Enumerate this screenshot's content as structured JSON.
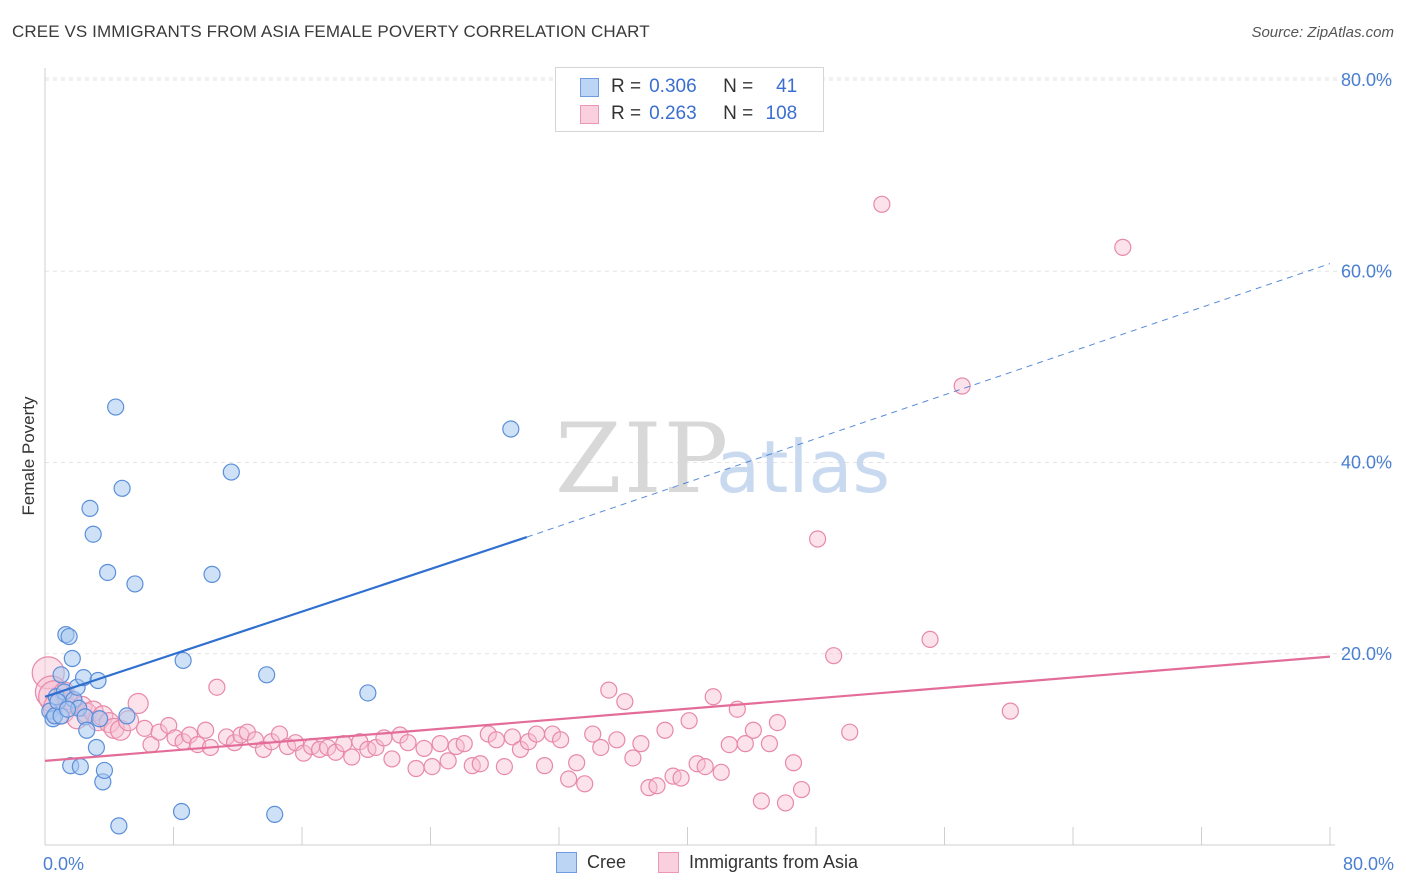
{
  "title": "CREE VS IMMIGRANTS FROM ASIA FEMALE POVERTY CORRELATION CHART",
  "source": "Source: ZipAtlas.com",
  "watermark": {
    "zip": "ZIP",
    "atlas": "atlas"
  },
  "colors": {
    "cree_fill": "#a8c8f0",
    "cree_stroke": "#5b8fd9",
    "cree_line": "#2f6fd0",
    "asia_fill": "#f7bfd2",
    "asia_stroke": "#e889a8",
    "asia_line": "#e36d98",
    "axis_text": "#4a7fd1"
  },
  "legend": {
    "cree": {
      "r_label": "R =",
      "r_value": "0.306",
      "n_label": "N =",
      "n_value": "41"
    },
    "asia": {
      "r_label": "R =",
      "r_value": "0.263",
      "n_label": "N =",
      "n_value": "108"
    }
  },
  "bottom_legend": {
    "cree": "Cree",
    "asia": "Immigrants from Asia"
  },
  "chart_data": {
    "type": "scatter",
    "title": "CREE VS IMMIGRANTS FROM ASIA FEMALE POVERTY CORRELATION CHART",
    "xlabel": "",
    "ylabel": "Female Poverty",
    "xlim": [
      0,
      80
    ],
    "ylim": [
      0,
      80
    ],
    "x_tick_labels": [
      "0.0%",
      "80.0%"
    ],
    "y_tick_labels": [
      "20.0%",
      "40.0%",
      "60.0%",
      "80.0%"
    ],
    "y_tick_values": [
      20,
      40,
      60,
      80
    ],
    "grid": true,
    "series": [
      {
        "name": "Cree",
        "points": [
          [
            0.3,
            14.0
          ],
          [
            0.5,
            13.2
          ],
          [
            0.6,
            13.5
          ],
          [
            0.7,
            15.5
          ],
          [
            1.0,
            17.8
          ],
          [
            1.0,
            13.5
          ],
          [
            1.2,
            16.0
          ],
          [
            1.3,
            22.0
          ],
          [
            1.5,
            21.8
          ],
          [
            1.6,
            8.3
          ],
          [
            1.7,
            19.5
          ],
          [
            1.8,
            15.2
          ],
          [
            2.0,
            16.5
          ],
          [
            2.1,
            14.3
          ],
          [
            2.2,
            8.2
          ],
          [
            2.4,
            17.5
          ],
          [
            2.5,
            13.4
          ],
          [
            2.6,
            12.0
          ],
          [
            2.8,
            35.2
          ],
          [
            3.0,
            32.5
          ],
          [
            3.2,
            10.2
          ],
          [
            3.3,
            17.2
          ],
          [
            3.4,
            13.2
          ],
          [
            3.6,
            6.6
          ],
          [
            3.7,
            7.8
          ],
          [
            3.9,
            28.5
          ],
          [
            4.4,
            45.8
          ],
          [
            4.6,
            2.0
          ],
          [
            4.8,
            37.3
          ],
          [
            5.1,
            13.5
          ],
          [
            5.6,
            27.3
          ],
          [
            8.5,
            3.5
          ],
          [
            8.6,
            19.3
          ],
          [
            10.4,
            28.3
          ],
          [
            11.6,
            39.0
          ],
          [
            13.8,
            17.8
          ],
          [
            14.3,
            3.2
          ],
          [
            20.1,
            15.9
          ],
          [
            29.0,
            43.5
          ],
          [
            0.8,
            15.0
          ],
          [
            1.4,
            14.2
          ]
        ],
        "trend": {
          "x0": 0,
          "y0": 15.5,
          "x1_solid": 30,
          "y1_solid": 32.2,
          "x1_dashed": 80,
          "y1_dashed": 60.8
        }
      },
      {
        "name": "Immigrants from Asia",
        "points": [
          [
            0.2,
            18.0
          ],
          [
            0.4,
            16.0
          ],
          [
            0.6,
            15.5
          ],
          [
            0.9,
            14.3
          ],
          [
            1.2,
            16.0
          ],
          [
            1.4,
            15.2
          ],
          [
            1.7,
            14.8
          ],
          [
            2.0,
            13.2
          ],
          [
            2.3,
            14.5
          ],
          [
            2.6,
            13.8
          ],
          [
            3.0,
            14.0
          ],
          [
            3.3,
            13.0
          ],
          [
            3.6,
            13.5
          ],
          [
            4.0,
            12.8
          ],
          [
            4.3,
            12.2
          ],
          [
            4.7,
            12.0
          ],
          [
            5.2,
            13.0
          ],
          [
            5.8,
            14.8
          ],
          [
            6.2,
            12.2
          ],
          [
            6.6,
            10.5
          ],
          [
            7.1,
            11.8
          ],
          [
            7.7,
            12.5
          ],
          [
            8.1,
            11.2
          ],
          [
            8.6,
            10.8
          ],
          [
            9.0,
            11.5
          ],
          [
            9.5,
            10.5
          ],
          [
            10.0,
            12.0
          ],
          [
            10.3,
            10.2
          ],
          [
            10.7,
            16.5
          ],
          [
            11.3,
            11.3
          ],
          [
            11.8,
            10.7
          ],
          [
            12.2,
            11.5
          ],
          [
            12.6,
            11.8
          ],
          [
            13.1,
            11.0
          ],
          [
            13.6,
            10.0
          ],
          [
            14.1,
            10.8
          ],
          [
            14.6,
            11.6
          ],
          [
            15.1,
            10.3
          ],
          [
            15.6,
            10.7
          ],
          [
            16.1,
            9.6
          ],
          [
            16.6,
            10.3
          ],
          [
            17.1,
            10.0
          ],
          [
            17.6,
            10.2
          ],
          [
            18.1,
            9.7
          ],
          [
            18.6,
            10.6
          ],
          [
            19.1,
            9.2
          ],
          [
            19.6,
            10.8
          ],
          [
            20.1,
            10.0
          ],
          [
            20.6,
            10.2
          ],
          [
            21.1,
            11.2
          ],
          [
            21.6,
            9.0
          ],
          [
            22.1,
            11.5
          ],
          [
            22.6,
            10.7
          ],
          [
            23.1,
            8.0
          ],
          [
            23.6,
            10.1
          ],
          [
            24.1,
            8.2
          ],
          [
            24.6,
            10.6
          ],
          [
            25.1,
            8.8
          ],
          [
            25.6,
            10.3
          ],
          [
            26.1,
            10.6
          ],
          [
            26.6,
            8.3
          ],
          [
            27.1,
            8.5
          ],
          [
            27.6,
            11.6
          ],
          [
            28.1,
            11.0
          ],
          [
            28.6,
            8.2
          ],
          [
            29.1,
            11.3
          ],
          [
            29.6,
            10.0
          ],
          [
            30.1,
            10.8
          ],
          [
            30.6,
            11.6
          ],
          [
            31.1,
            8.3
          ],
          [
            31.6,
            11.6
          ],
          [
            32.1,
            11.0
          ],
          [
            32.6,
            6.9
          ],
          [
            33.1,
            8.6
          ],
          [
            33.6,
            6.4
          ],
          [
            34.1,
            11.6
          ],
          [
            34.6,
            10.2
          ],
          [
            35.1,
            16.2
          ],
          [
            35.6,
            11.0
          ],
          [
            36.1,
            15.0
          ],
          [
            36.6,
            9.1
          ],
          [
            37.1,
            10.6
          ],
          [
            37.6,
            6.0
          ],
          [
            38.1,
            6.2
          ],
          [
            38.6,
            12.0
          ],
          [
            39.1,
            7.2
          ],
          [
            39.6,
            7.0
          ],
          [
            40.1,
            13.0
          ],
          [
            40.6,
            8.5
          ],
          [
            41.1,
            8.2
          ],
          [
            41.6,
            15.5
          ],
          [
            42.1,
            7.6
          ],
          [
            42.6,
            10.5
          ],
          [
            43.1,
            14.2
          ],
          [
            43.6,
            10.6
          ],
          [
            44.1,
            12.0
          ],
          [
            44.6,
            4.6
          ],
          [
            45.1,
            10.6
          ],
          [
            45.6,
            12.8
          ],
          [
            46.1,
            4.4
          ],
          [
            46.6,
            8.6
          ],
          [
            47.1,
            5.8
          ],
          [
            48.1,
            32.0
          ],
          [
            49.1,
            19.8
          ],
          [
            50.1,
            11.8
          ],
          [
            52.1,
            67.0
          ],
          [
            55.1,
            21.5
          ],
          [
            57.1,
            48.0
          ],
          [
            60.1,
            14.0
          ],
          [
            67.1,
            62.5
          ]
        ],
        "trend": {
          "x0": 0,
          "y0": 8.8,
          "x1": 80,
          "y1": 19.7
        }
      }
    ]
  }
}
